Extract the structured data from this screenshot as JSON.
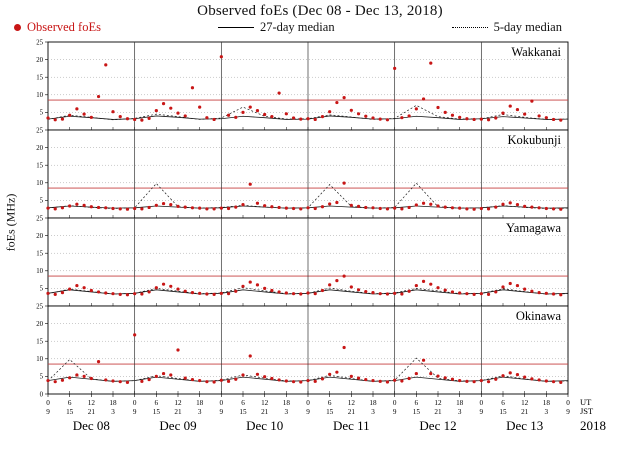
{
  "title": "Observed foEs (Dec 08 - Dec 13, 2018)",
  "legend": {
    "observed": "Observed foEs",
    "median27": "27-day median",
    "median5": "5-day median"
  },
  "ylabel": "foEs (MHz)",
  "ylim": [
    0,
    25
  ],
  "yticks": [
    0,
    5,
    10,
    15,
    20,
    25
  ],
  "gridlines_mhz": [
    5,
    10,
    15,
    20
  ],
  "threshold_mhz": 8.5,
  "colors": {
    "observed": "#c81616",
    "threshold": "#c43c3c",
    "median": "#1a1a1a",
    "grid": "#9a9a9a",
    "frame": "#000000"
  },
  "xaxis": {
    "hours_total": 144,
    "day_hours": 24,
    "tick_step_h": 6,
    "ut_labels": [
      "0",
      "6",
      "12",
      "18"
    ],
    "jst_labels": [
      "9",
      "15",
      "21",
      "3"
    ],
    "right_labels": {
      "ut": "UT",
      "jst": "JST",
      "year": "2018"
    },
    "dates": [
      "Dec 08",
      "Dec 09",
      "Dec 10",
      "Dec 11",
      "Dec 12",
      "Dec 13"
    ]
  },
  "chart_data": {
    "type": "scatter",
    "x_unit": "hours since Dec 08 00:00 UT",
    "obs_step_h": 2,
    "med_step_h": 6,
    "panels": [
      {
        "station": "Wakkanai",
        "obs": [
          3.4,
          2.9,
          3.1,
          4.2,
          6.0,
          4.5,
          3.6,
          9.5,
          18.5,
          5.2,
          3.8,
          3.2,
          3.0,
          2.8,
          3.3,
          5.5,
          7.5,
          6.2,
          4.8,
          4.0,
          12.0,
          6.5,
          3.5,
          3.0,
          20.8,
          4.2,
          3.6,
          5.0,
          6.5,
          5.5,
          4.4,
          3.8,
          10.5,
          4.6,
          3.4,
          3.1,
          3.2,
          3.0,
          3.8,
          5.2,
          7.8,
          9.2,
          5.6,
          4.6,
          3.9,
          3.4,
          3.1,
          2.9,
          17.5,
          3.5,
          4.0,
          6.0,
          8.8,
          19.0,
          6.4,
          5.0,
          4.2,
          3.6,
          3.2,
          3.0,
          3.1,
          2.9,
          3.4,
          4.8,
          6.8,
          5.8,
          4.5,
          8.2,
          4.0,
          3.5,
          3.0,
          2.8
        ],
        "med27": [
          3.1,
          3.9,
          3.5,
          3.0,
          3.2,
          4.0,
          3.6,
          3.1,
          3.2,
          3.9,
          3.5,
          3.0,
          3.1,
          4.0,
          3.6,
          3.1,
          3.2,
          3.9,
          3.5,
          3.0,
          3.2,
          3.8,
          3.4,
          3.0,
          3.1
        ],
        "med5": [
          3.0,
          4.2,
          3.6,
          2.9,
          3.3,
          4.5,
          3.8,
          3.0,
          3.4,
          6.5,
          3.9,
          3.1,
          3.2,
          4.3,
          3.7,
          3.0,
          3.3,
          7.0,
          3.8,
          3.1,
          3.2,
          4.4,
          3.6,
          3.0,
          3.1
        ]
      },
      {
        "station": "Kokubunji",
        "obs": [
          2.8,
          2.6,
          2.9,
          3.4,
          3.9,
          3.6,
          3.2,
          3.0,
          2.9,
          2.7,
          2.6,
          2.5,
          2.7,
          2.6,
          3.0,
          3.6,
          4.1,
          3.8,
          3.3,
          3.1,
          2.9,
          2.8,
          2.6,
          2.6,
          2.8,
          2.7,
          3.1,
          3.8,
          9.6,
          4.2,
          3.5,
          3.2,
          3.0,
          2.8,
          2.7,
          2.6,
          2.9,
          2.7,
          3.2,
          4.0,
          4.4,
          9.9,
          3.6,
          3.3,
          3.0,
          2.9,
          2.7,
          2.6,
          2.8,
          2.6,
          3.0,
          3.7,
          4.2,
          3.9,
          3.4,
          3.1,
          2.9,
          2.8,
          2.6,
          2.5,
          2.7,
          2.6,
          3.1,
          3.9,
          4.3,
          3.8,
          3.3,
          3.1,
          2.9,
          2.7,
          2.6,
          2.5
        ],
        "med27": [
          2.9,
          3.4,
          3.1,
          2.8,
          2.9,
          3.4,
          3.1,
          2.8,
          2.9,
          3.4,
          3.1,
          2.8,
          2.9,
          3.4,
          3.1,
          2.8,
          2.9,
          3.4,
          3.1,
          2.8,
          2.9,
          3.4,
          3.1,
          2.8,
          2.9
        ],
        "med5": [
          2.8,
          3.5,
          3.0,
          2.7,
          2.9,
          9.8,
          3.2,
          2.8,
          3.0,
          3.6,
          3.1,
          2.8,
          2.9,
          9.5,
          3.3,
          2.8,
          3.0,
          9.9,
          3.2,
          2.8,
          2.9,
          3.5,
          3.0,
          2.7,
          2.8
        ]
      },
      {
        "station": "Yamagawa",
        "obs": [
          3.6,
          3.3,
          3.8,
          4.8,
          5.8,
          5.2,
          4.4,
          4.0,
          3.7,
          3.5,
          3.3,
          3.2,
          3.5,
          3.4,
          4.0,
          5.2,
          6.2,
          5.6,
          4.8,
          4.2,
          3.8,
          3.6,
          3.4,
          3.3,
          3.6,
          3.5,
          4.2,
          5.6,
          6.8,
          6.0,
          5.0,
          4.4,
          4.0,
          3.7,
          3.5,
          3.4,
          3.7,
          3.5,
          4.4,
          6.0,
          7.2,
          8.5,
          5.4,
          4.6,
          4.1,
          3.8,
          3.5,
          3.4,
          3.6,
          3.4,
          4.2,
          5.8,
          7.0,
          6.2,
          5.2,
          4.5,
          4.0,
          3.7,
          3.5,
          3.3,
          3.5,
          3.3,
          4.0,
          5.4,
          6.4,
          5.8,
          4.8,
          4.2,
          3.8,
          3.6,
          3.4,
          3.2
        ],
        "med27": [
          3.6,
          4.6,
          4.0,
          3.4,
          3.6,
          4.6,
          4.0,
          3.4,
          3.6,
          4.6,
          4.0,
          3.4,
          3.6,
          4.6,
          4.0,
          3.4,
          3.6,
          4.6,
          4.0,
          3.4,
          3.6,
          4.6,
          4.0,
          3.4,
          3.6
        ],
        "med5": [
          3.5,
          4.8,
          4.1,
          3.4,
          3.6,
          5.0,
          4.2,
          3.5,
          3.7,
          5.2,
          4.3,
          3.5,
          3.6,
          5.1,
          4.2,
          3.5,
          3.7,
          5.0,
          4.3,
          3.5,
          3.6,
          4.9,
          4.1,
          3.4,
          3.5
        ]
      },
      {
        "station": "Okinawa",
        "obs": [
          3.8,
          3.5,
          3.9,
          4.6,
          5.4,
          5.0,
          4.4,
          9.2,
          4.0,
          3.7,
          3.5,
          3.3,
          16.8,
          3.6,
          4.1,
          5.0,
          5.8,
          5.4,
          12.5,
          4.5,
          4.1,
          3.8,
          3.5,
          3.4,
          3.9,
          3.6,
          4.2,
          5.4,
          10.8,
          5.6,
          4.9,
          4.4,
          4.0,
          3.7,
          3.5,
          3.4,
          3.8,
          3.6,
          4.3,
          5.6,
          6.2,
          13.2,
          5.0,
          4.5,
          4.1,
          3.8,
          3.6,
          3.4,
          3.9,
          3.7,
          4.4,
          5.8,
          9.6,
          5.8,
          5.1,
          4.6,
          4.2,
          3.8,
          3.6,
          3.5,
          3.8,
          3.5,
          4.2,
          5.2,
          6.0,
          5.5,
          4.8,
          4.3,
          4.0,
          3.7,
          3.5,
          3.3
        ],
        "med27": [
          3.8,
          4.8,
          4.2,
          3.6,
          3.8,
          4.8,
          4.2,
          3.6,
          3.8,
          4.8,
          4.2,
          3.6,
          3.8,
          4.8,
          4.2,
          3.6,
          3.8,
          4.8,
          4.2,
          3.6,
          3.8,
          4.8,
          4.2,
          3.6,
          3.8
        ],
        "med5": [
          3.7,
          9.8,
          4.3,
          3.6,
          3.8,
          5.2,
          4.4,
          3.6,
          3.9,
          5.4,
          4.5,
          3.7,
          3.8,
          5.3,
          4.4,
          3.6,
          3.9,
          10.2,
          4.5,
          3.7,
          3.8,
          5.2,
          4.3,
          3.6,
          3.7
        ]
      }
    ]
  }
}
